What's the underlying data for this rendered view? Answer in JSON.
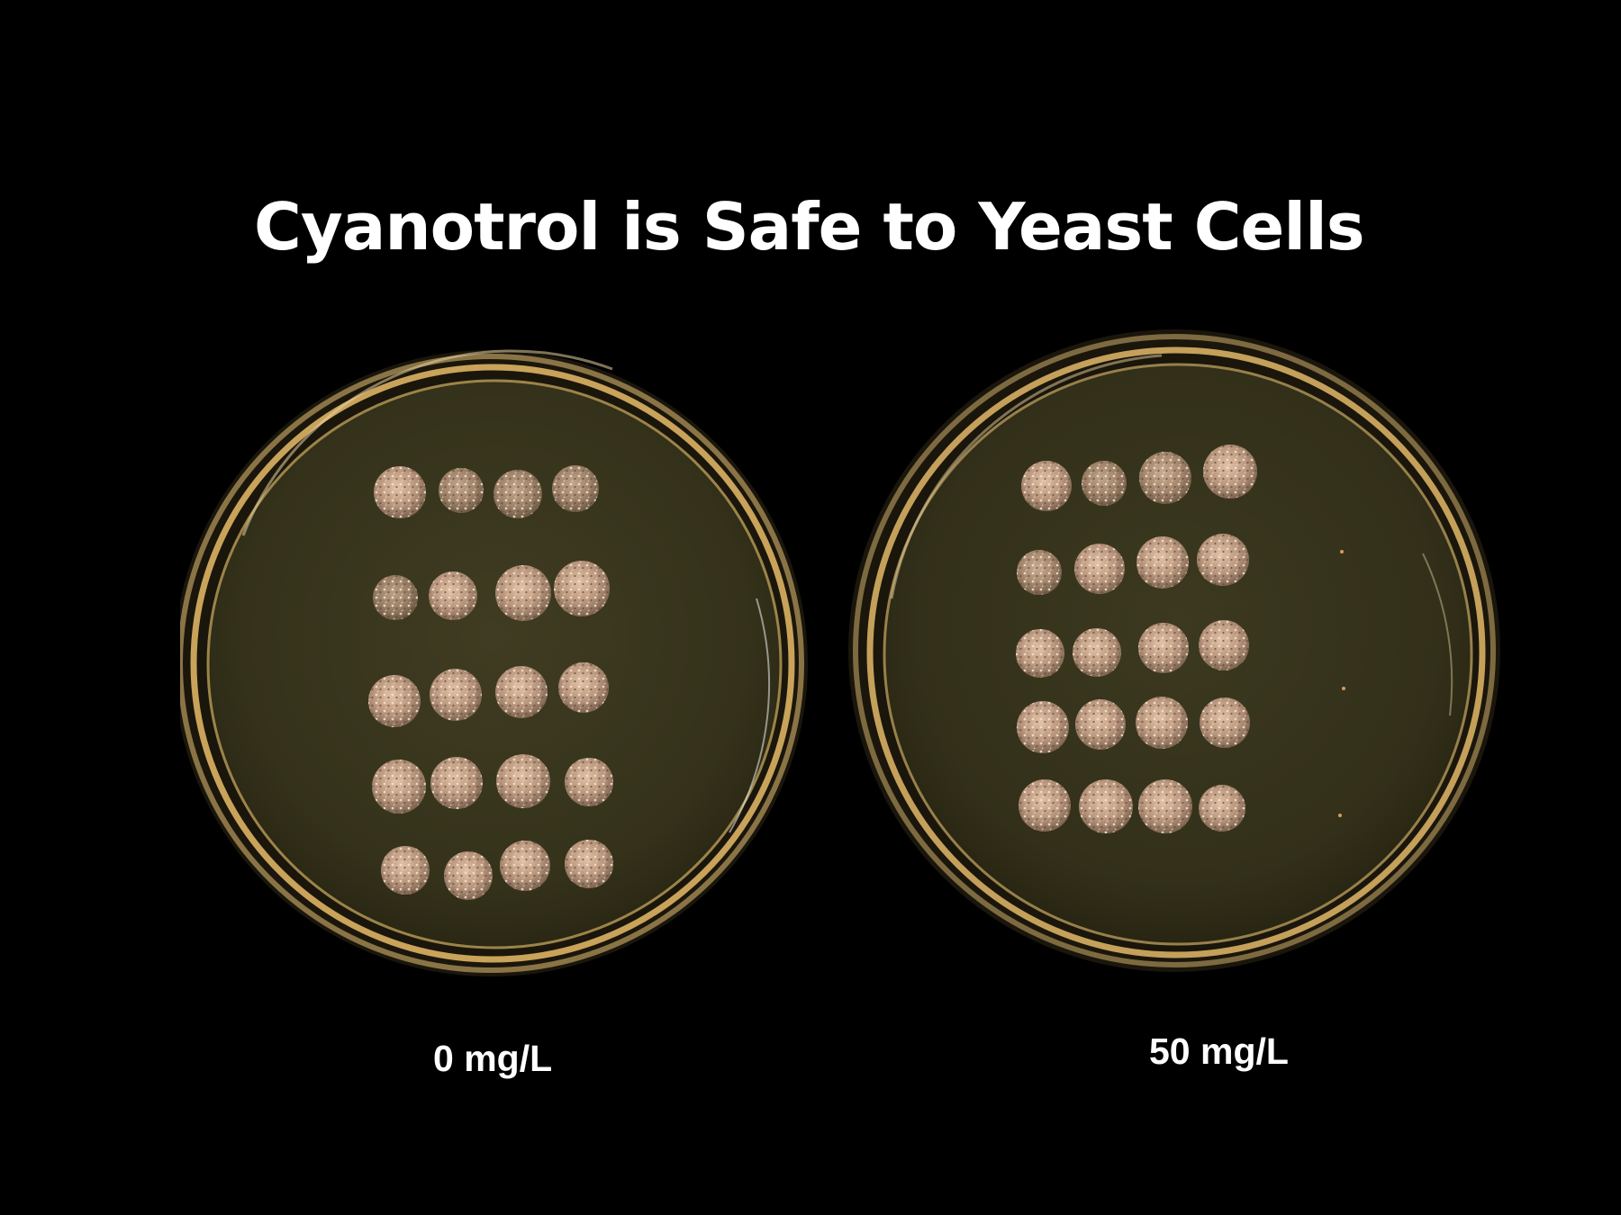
{
  "slide": {
    "title": "Cyanotrol is Safe to Yeast Cells",
    "background": "#000000"
  },
  "photo": {
    "subject": "two agar petri dishes with spotted yeast colonies",
    "agar_color": "#3d3a20",
    "rim_color": "#c9a35a",
    "colony_color": "#d8b49a",
    "plates": [
      {
        "label": "0 mg/L"
      },
      {
        "label": "50 mg/L"
      }
    ]
  }
}
